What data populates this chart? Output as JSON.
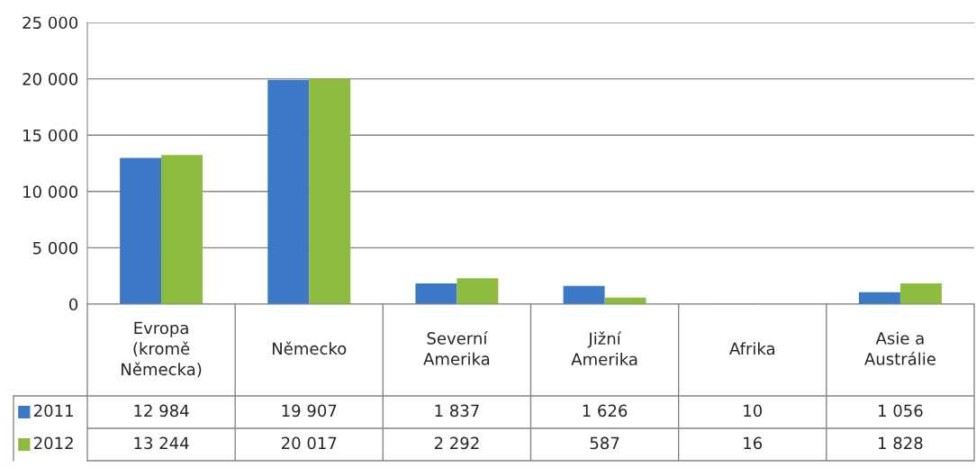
{
  "chart_data": {
    "type": "bar",
    "categories": [
      "Evropa (kromě Německa)",
      "Německo",
      "Severní Amerika",
      "Jižní Amerika",
      "Afrika",
      "Asie a Austrálie"
    ],
    "series": [
      {
        "name": "2011",
        "color": "#3b78c6",
        "values": [
          12984,
          19907,
          1837,
          1626,
          10,
          1056
        ],
        "value_labels": [
          "12 984",
          "19 907",
          "1 837",
          "1 626",
          "10",
          "1 056"
        ]
      },
      {
        "name": "2012",
        "color": "#8dbb3e",
        "values": [
          13244,
          20017,
          2292,
          587,
          16,
          1828
        ],
        "value_labels": [
          "13 244",
          "20 017",
          "2 292",
          "587",
          "16",
          "1 828"
        ]
      }
    ],
    "ylim": [
      0,
      25000
    ],
    "yticks": [
      0,
      {
        "value": 5000,
        "label": "5 000"
      },
      {
        "value": 10000,
        "label": "10 000"
      },
      {
        "value": 15000,
        "label": "15 000"
      },
      {
        "value": 20000,
        "label": "20 000"
      },
      {
        "value": 25000,
        "label": "25 000"
      }
    ],
    "grid": "y",
    "legend": "bottom"
  }
}
